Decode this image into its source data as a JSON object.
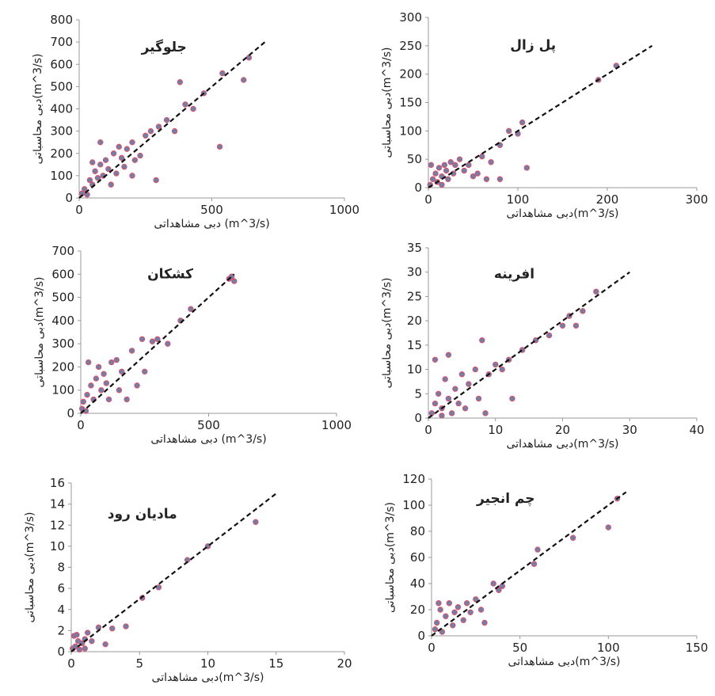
{
  "chart_data": [
    {
      "type": "scatter",
      "title": "جلوگیر",
      "x_label": "دبی مشاهداتی (m^3/s)",
      "y_label": "دبی محاسباتی(m^3/s)",
      "color": "#6f7fa6",
      "edgecolor": "#e0506a",
      "x": [
        10,
        20,
        30,
        40,
        50,
        60,
        70,
        80,
        90,
        100,
        110,
        120,
        130,
        140,
        150,
        160,
        170,
        180,
        200,
        210,
        230,
        250,
        270,
        290,
        300,
        330,
        360,
        380,
        400,
        430,
        470,
        540,
        530,
        620,
        640,
        80,
        50,
        200
      ],
      "values": [
        20,
        40,
        15,
        80,
        60,
        120,
        90,
        150,
        100,
        170,
        130,
        60,
        200,
        110,
        230,
        180,
        140,
        220,
        250,
        170,
        190,
        280,
        300,
        80,
        320,
        350,
        300,
        520,
        420,
        400,
        470,
        560,
        230,
        530,
        630,
        250,
        160,
        100
      ],
      "reference_line": {
        "x": [
          0,
          700
        ],
        "values": [
          0,
          700
        ]
      },
      "xlim": [
        0,
        1000
      ],
      "ylim": [
        0,
        800
      ],
      "xticks": [
        0,
        500,
        1000
      ],
      "yticks": [
        0,
        100,
        200,
        300,
        400,
        500,
        600,
        700,
        800
      ]
    },
    {
      "type": "scatter",
      "title": "پل زال",
      "x_label": "دبی مشاهداتی(m^3/s)",
      "y_label": "دبی محاسباتی(m^3/s)",
      "color": "#6f7fa6",
      "edgecolor": "#e0506a",
      "x": [
        2,
        5,
        8,
        10,
        12,
        15,
        18,
        20,
        22,
        25,
        28,
        30,
        35,
        40,
        45,
        50,
        55,
        60,
        65,
        70,
        80,
        80,
        90,
        100,
        105,
        110,
        190,
        210,
        3,
        15
      ],
      "values": [
        5,
        15,
        25,
        10,
        35,
        20,
        40,
        30,
        15,
        45,
        25,
        40,
        50,
        30,
        40,
        20,
        25,
        55,
        15,
        45,
        75,
        15,
        100,
        95,
        115,
        35,
        190,
        215,
        40,
        5
      ],
      "reference_line": {
        "x": [
          0,
          250
        ],
        "values": [
          0,
          250
        ]
      },
      "xlim": [
        0,
        300
      ],
      "ylim": [
        0,
        300
      ],
      "xticks": [
        0,
        100,
        200,
        300
      ],
      "yticks": [
        0,
        50,
        100,
        150,
        200,
        250,
        300
      ]
    },
    {
      "type": "scatter",
      "title": "کشکان",
      "x_label": "دبی مشاهداتی (m^3/s)",
      "y_label": "دبی محاسباتی(m^3/s)",
      "color": "#6f7fa6",
      "edgecolor": "#e0506a",
      "x": [
        5,
        10,
        20,
        25,
        30,
        40,
        50,
        60,
        70,
        80,
        90,
        100,
        110,
        120,
        140,
        150,
        160,
        180,
        200,
        220,
        240,
        250,
        280,
        300,
        340,
        390,
        430,
        580,
        590,
        600
      ],
      "values": [
        20,
        50,
        10,
        80,
        220,
        120,
        60,
        150,
        200,
        100,
        170,
        130,
        60,
        220,
        230,
        100,
        180,
        60,
        270,
        120,
        320,
        180,
        310,
        320,
        300,
        400,
        450,
        580,
        590,
        570
      ],
      "reference_line": {
        "x": [
          0,
          600
        ],
        "values": [
          0,
          600
        ]
      },
      "xlim": [
        0,
        1000
      ],
      "ylim": [
        0,
        700
      ],
      "xticks": [
        0,
        500,
        1000
      ],
      "yticks": [
        0,
        100,
        200,
        300,
        400,
        500,
        600,
        700
      ]
    },
    {
      "type": "scatter",
      "title": "افرینه",
      "x_label": "دبی مشاهداتی(m^3/s)",
      "y_label": "دبی محاسباتی(m^3/s)",
      "color": "#6f7fa6",
      "edgecolor": "#e0506a",
      "x": [
        0.5,
        1,
        1,
        1.5,
        2,
        2.5,
        3,
        3,
        3.5,
        4,
        4.5,
        5,
        5.5,
        6,
        7,
        7.5,
        8,
        8.5,
        9,
        10,
        11,
        12,
        12.5,
        14,
        16,
        18,
        20,
        21,
        22,
        23,
        25,
        2
      ],
      "values": [
        1,
        12,
        3,
        5,
        2,
        8,
        4,
        13,
        1,
        6,
        3,
        9,
        2,
        7,
        10,
        4,
        16,
        1,
        9,
        11,
        10,
        12,
        4,
        14,
        16,
        17,
        19,
        21,
        19,
        22,
        26,
        0.5
      ],
      "reference_line": {
        "x": [
          0,
          30
        ],
        "values": [
          0,
          30
        ]
      },
      "xlim": [
        0,
        40
      ],
      "ylim": [
        0,
        35
      ],
      "xticks": [
        0,
        10,
        20,
        30,
        40
      ],
      "yticks": [
        0,
        5,
        10,
        15,
        20,
        25,
        30,
        35
      ]
    },
    {
      "type": "scatter",
      "title": "مادیان رود",
      "x_label": "دبی مشاهداتی(m^3/s)",
      "y_label": "دبی محاسباتی(m^3/s)",
      "color": "#6f7fa6",
      "edgecolor": "#e0506a",
      "x": [
        0.1,
        0.2,
        0.3,
        0.5,
        0.6,
        0.8,
        1,
        1,
        1.2,
        1.5,
        2,
        2.5,
        3,
        4,
        5.2,
        6.4,
        8.5,
        10,
        13.5,
        0.4
      ],
      "values": [
        0.3,
        1.5,
        0.5,
        1,
        0.2,
        0.8,
        1.2,
        0.3,
        1.8,
        1,
        2.3,
        0.7,
        2.2,
        2.4,
        5.1,
        6.1,
        8.7,
        10,
        12.3,
        1.6
      ],
      "reference_line": {
        "x": [
          0,
          15
        ],
        "values": [
          0,
          15
        ]
      },
      "xlim": [
        0,
        20
      ],
      "ylim": [
        0,
        16
      ],
      "xticks": [
        0,
        5,
        10,
        15,
        20
      ],
      "yticks": [
        0,
        2,
        4,
        6,
        8,
        10,
        12,
        14,
        16
      ]
    },
    {
      "type": "scatter",
      "title": "چم انجیر",
      "x_label": "دبی مشاهداتی(m^3/s)",
      "y_label": "دبی محاسباتی(m^3/s)",
      "color": "#6f7fa6",
      "edgecolor": "#e0506a",
      "x": [
        2,
        3,
        5,
        6,
        8,
        10,
        12,
        13,
        15,
        18,
        20,
        22,
        25,
        28,
        30,
        35,
        38,
        40,
        58,
        60,
        80,
        100,
        105,
        4
      ],
      "values": [
        5,
        10,
        20,
        3,
        15,
        25,
        8,
        18,
        22,
        12,
        25,
        18,
        28,
        20,
        10,
        40,
        35,
        38,
        55,
        66,
        75,
        83,
        105,
        25
      ],
      "reference_line": {
        "x": [
          0,
          110
        ],
        "values": [
          0,
          110
        ]
      },
      "xlim": [
        0,
        150
      ],
      "ylim": [
        0,
        120
      ],
      "xticks": [
        0,
        50,
        100,
        150
      ],
      "yticks": [
        0,
        20,
        40,
        60,
        80,
        100,
        120
      ]
    }
  ]
}
